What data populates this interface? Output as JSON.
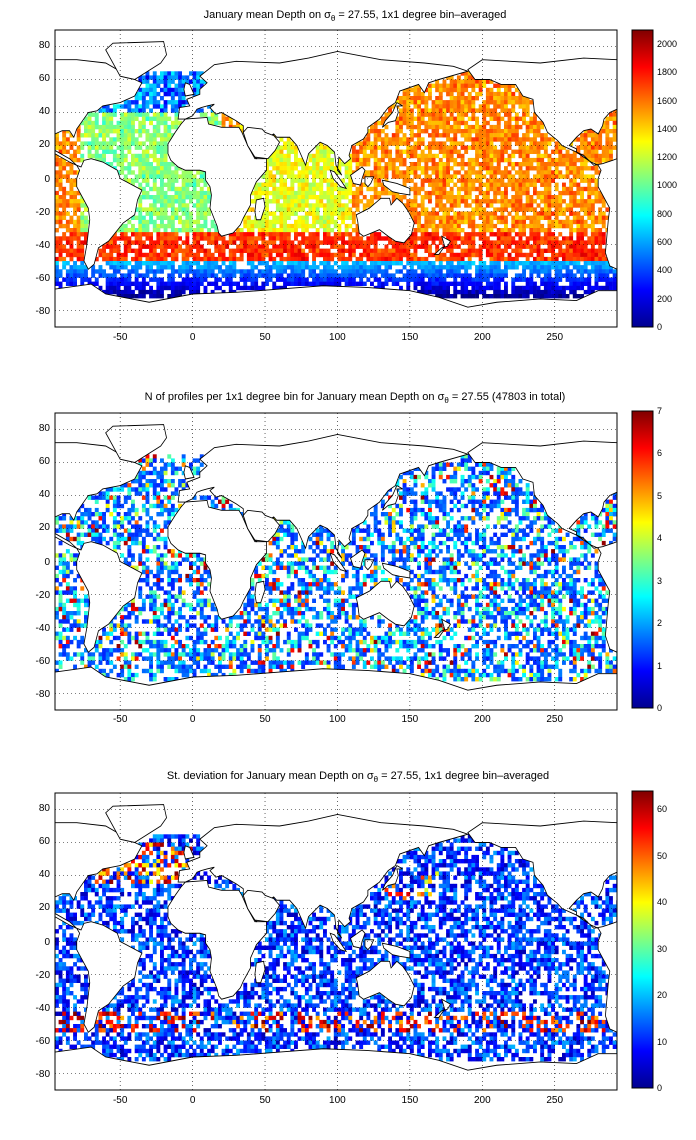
{
  "figure": {
    "background": "#ffffff",
    "colormap": "jet",
    "land_color": "#ffffff",
    "coastline_color": "#000000"
  },
  "chart_data": [
    {
      "type": "heatmap",
      "title": {
        "pre": "January mean Depth on σ",
        "sub": "θ",
        "post": " = 27.55, 1x1 degree bin–averaged"
      },
      "x_ticks": [
        "-50",
        "0",
        "50",
        "100",
        "150",
        "200",
        "250"
      ],
      "y_ticks": [
        "80",
        "60",
        "40",
        "20",
        "0",
        "-20",
        "-40",
        "-60",
        "-80"
      ],
      "xlim": [
        -95,
        293
      ],
      "ylim": [
        -90,
        90
      ],
      "grid": true,
      "colorbar": {
        "range": [
          0,
          2100
        ],
        "ticks": [
          "0",
          "200",
          "400",
          "600",
          "800",
          "1000",
          "1200",
          "1400",
          "1600",
          "1800",
          "2000"
        ]
      }
    },
    {
      "type": "heatmap",
      "title": {
        "pre": "N of profiles per 1x1 degree bin for January mean Depth on σ",
        "sub": "θ",
        "post": " = 27.55 (47803 in total)"
      },
      "x_ticks": [
        "-50",
        "0",
        "50",
        "100",
        "150",
        "200",
        "250"
      ],
      "y_ticks": [
        "80",
        "60",
        "40",
        "20",
        "0",
        "-20",
        "-40",
        "-60",
        "-80"
      ],
      "xlim": [
        -95,
        293
      ],
      "ylim": [
        -90,
        90
      ],
      "grid": true,
      "colorbar": {
        "range": [
          0,
          7
        ],
        "ticks": [
          "0",
          "1",
          "2",
          "3",
          "4",
          "5",
          "6",
          "7"
        ]
      }
    },
    {
      "type": "heatmap",
      "title": {
        "pre": "St. deviation for January mean Depth on σ",
        "sub": "θ",
        "post": " = 27.55, 1x1 degree bin–averaged"
      },
      "x_ticks": [
        "-50",
        "0",
        "50",
        "100",
        "150",
        "200",
        "250"
      ],
      "y_ticks": [
        "80",
        "60",
        "40",
        "20",
        "0",
        "-20",
        "-40",
        "-60",
        "-80"
      ],
      "xlim": [
        -95,
        293
      ],
      "ylim": [
        -90,
        90
      ],
      "grid": true,
      "colorbar": {
        "range": [
          0,
          64
        ],
        "ticks": [
          "0",
          "10",
          "20",
          "30",
          "40",
          "50",
          "60"
        ]
      }
    }
  ]
}
